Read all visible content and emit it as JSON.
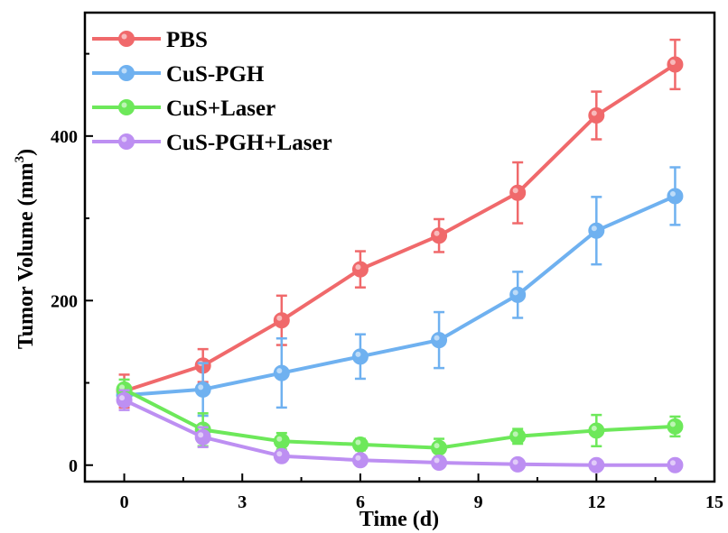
{
  "chart_data": {
    "type": "line",
    "title": "",
    "xlabel": "Time (d)",
    "ylabel_main": "Tumor Volume (mm",
    "ylabel_sup": "3",
    "ylabel_close": ")",
    "xlim": [
      -1,
      15
    ],
    "ylim": [
      -20,
      550
    ],
    "xticks": [
      0,
      3,
      6,
      9,
      12,
      15
    ],
    "xtick_labels": [
      "0",
      "3",
      "6",
      "9",
      "12",
      "15"
    ],
    "yticks": [
      0,
      200,
      400
    ],
    "ytick_labels": [
      "0",
      "200",
      "400"
    ],
    "grid": false,
    "legend_position": "top-left",
    "x": [
      0,
      2,
      4,
      6,
      8,
      10,
      12,
      14
    ],
    "series": [
      {
        "name": "PBS",
        "color": "#f0696b",
        "values": [
          90,
          121,
          176,
          238,
          279,
          331,
          425,
          487
        ],
        "errors": [
          20,
          20,
          30,
          22,
          20,
          37,
          29,
          30
        ]
      },
      {
        "name": "CuS-PGH",
        "color": "#6fb1f0",
        "values": [
          85,
          92,
          112,
          132,
          152,
          207,
          285,
          327
        ],
        "errors": [
          8,
          32,
          42,
          27,
          34,
          28,
          41,
          35
        ]
      },
      {
        "name": "CuS+Laser",
        "color": "#6de85a",
        "values": [
          92,
          43,
          29,
          25,
          21,
          35,
          42,
          47
        ],
        "errors": [
          12,
          20,
          10,
          7,
          11,
          9,
          19,
          12
        ]
      },
      {
        "name": "CuS-PGH+Laser",
        "color": "#bd8ff2",
        "values": [
          79,
          34,
          11,
          6,
          3,
          1,
          0,
          0
        ],
        "errors": [
          12,
          12,
          5,
          4,
          3,
          2,
          2,
          2
        ]
      }
    ]
  }
}
